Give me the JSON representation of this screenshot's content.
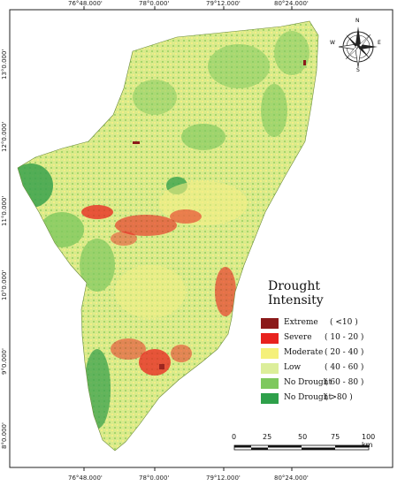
{
  "map": {
    "top_ticks": [
      "76°48.000'",
      "78°0.000'",
      "79°12.000'",
      "80°24.000'"
    ],
    "bottom_ticks": [
      "76°48.000'",
      "78°0.000'",
      "79°12.000'",
      "80°24.000'"
    ],
    "left_ticks": [
      "13°0.000'",
      "12°0.000'",
      "11°0.000'",
      "10°0.000'",
      "9°0.000'",
      "8°0.000'"
    ]
  },
  "legend": {
    "title": "Drought Intensity",
    "items": [
      {
        "label": "Extreme",
        "range": "( <10 )",
        "color": "#8b1a1a"
      },
      {
        "label": "Severe",
        "range": "( 10 - 20 )",
        "color": "#e8221e"
      },
      {
        "label": "Moderate",
        "range": "( 20 - 40 )",
        "color": "#f5f07a"
      },
      {
        "label": "Low",
        "range": "( 40 - 60 )",
        "color": "#dcee9a"
      },
      {
        "label": "No Drought",
        "range": "( 60 - 80 )",
        "color": "#7ec85e"
      },
      {
        "label": "No Drought",
        "range": "( >80 )",
        "color": "#2ea04a"
      }
    ]
  },
  "scale": {
    "labels": [
      "0",
      "25",
      "50",
      "75",
      "100 km"
    ]
  },
  "compass": {
    "n": "N",
    "s": "S",
    "e": "E",
    "w": "W"
  },
  "colors": {
    "extreme": "#8b1a1a",
    "severe": "#e8221e",
    "moderate": "#f5f07a",
    "low": "#dcee9a",
    "no_drought": "#7ec85e",
    "no_drought_high": "#2ea04a"
  }
}
